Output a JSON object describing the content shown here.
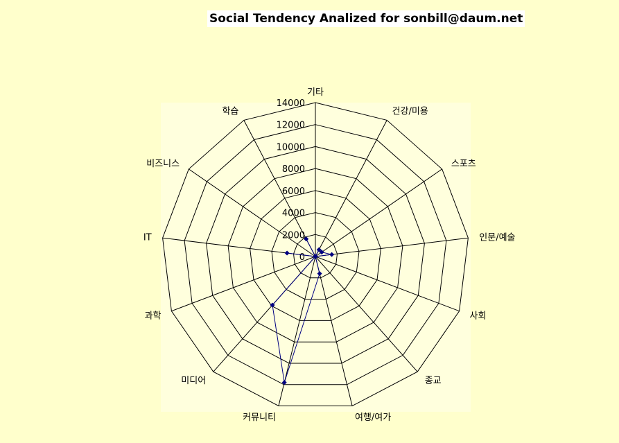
{
  "chart_data": {
    "type": "radar",
    "title": "Social Tendency Analized for sonbill@daum.net",
    "categories": [
      "기타",
      "건강/미용",
      "스포츠",
      "인문/예술",
      "사회",
      "종교",
      "여행/여가",
      "커뮤니티",
      "미디어",
      "과학",
      "IT",
      "비즈니스",
      "학습"
    ],
    "series": [
      {
        "values": [
          0,
          700,
          700,
          1500,
          0,
          0,
          1600,
          11800,
          5900,
          0,
          2600,
          0,
          1800
        ]
      }
    ],
    "r_ticks": [
      0,
      2000,
      4000,
      6000,
      8000,
      10000,
      12000,
      14000
    ],
    "rlim": [
      0,
      14000
    ],
    "series_color": "#000080",
    "grid": true
  }
}
